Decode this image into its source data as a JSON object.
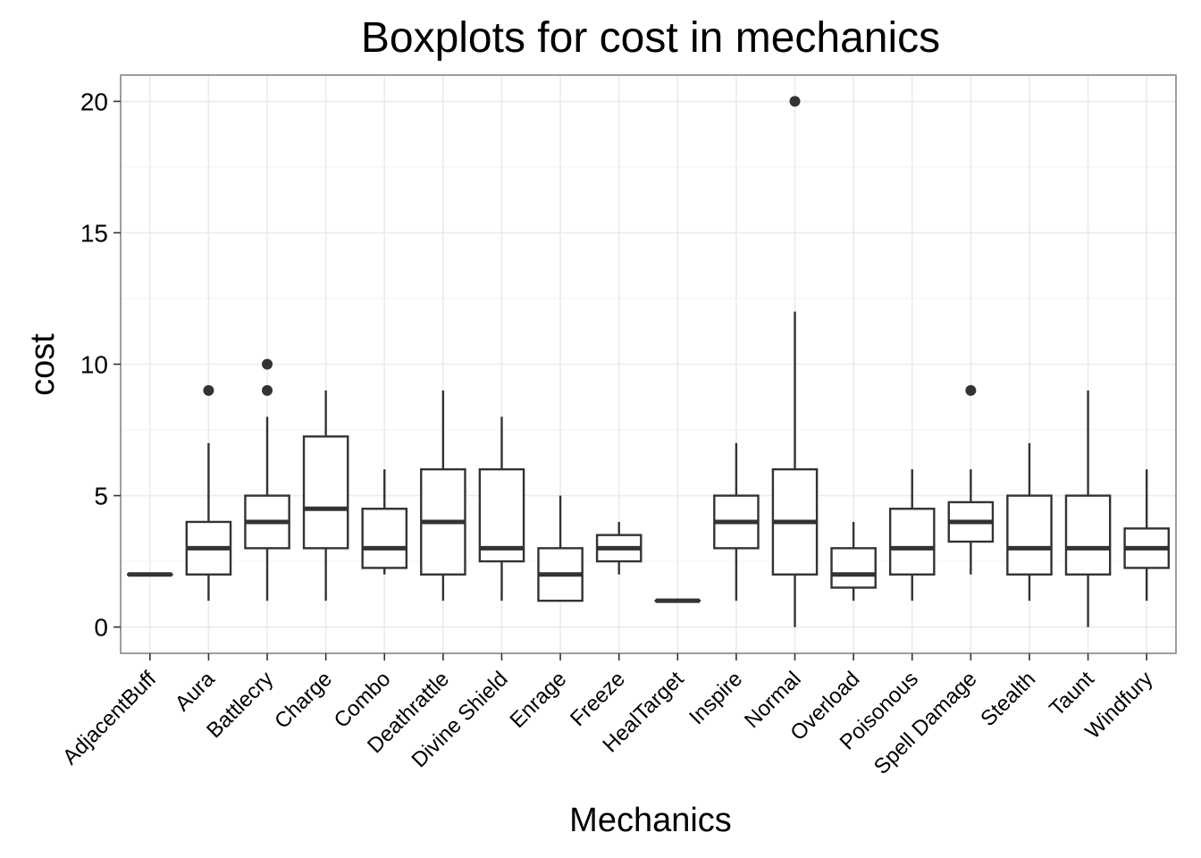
{
  "chart_data": {
    "type": "boxplot",
    "title": "Boxplots for cost in mechanics",
    "xlabel": "Mechanics",
    "ylabel": "cost",
    "ylim": [
      -1,
      21
    ],
    "yticks": [
      0,
      5,
      10,
      15,
      20
    ],
    "grid": true,
    "categories": [
      "AdjacentBuff",
      "Aura",
      "Battlecry",
      "Charge",
      "Combo",
      "Deathrattle",
      "Divine Shield",
      "Enrage",
      "Freeze",
      "HealTarget",
      "Inspire",
      "Normal",
      "Overload",
      "Poisonous",
      "Spell Damage",
      "Stealth",
      "Taunt",
      "Windfury"
    ],
    "boxes": [
      {
        "min": 2,
        "q1": 2,
        "median": 2,
        "q3": 2,
        "max": 2,
        "outliers": []
      },
      {
        "min": 1,
        "q1": 2,
        "median": 3,
        "q3": 4,
        "max": 7,
        "outliers": [
          9
        ]
      },
      {
        "min": 1,
        "q1": 3,
        "median": 4,
        "q3": 5,
        "max": 8,
        "outliers": [
          9,
          10
        ]
      },
      {
        "min": 1,
        "q1": 3,
        "median": 4.5,
        "q3": 7.25,
        "max": 9,
        "outliers": []
      },
      {
        "min": 2,
        "q1": 2.25,
        "median": 3,
        "q3": 4.5,
        "max": 6,
        "outliers": []
      },
      {
        "min": 1,
        "q1": 2,
        "median": 4,
        "q3": 6,
        "max": 9,
        "outliers": []
      },
      {
        "min": 1,
        "q1": 2.5,
        "median": 3,
        "q3": 6,
        "max": 8,
        "outliers": []
      },
      {
        "min": 1,
        "q1": 1,
        "median": 2,
        "q3": 3,
        "max": 5,
        "outliers": []
      },
      {
        "min": 2,
        "q1": 2.5,
        "median": 3,
        "q3": 3.5,
        "max": 4,
        "outliers": []
      },
      {
        "min": 1,
        "q1": 1,
        "median": 1,
        "q3": 1,
        "max": 1,
        "outliers": []
      },
      {
        "min": 1,
        "q1": 3,
        "median": 4,
        "q3": 5,
        "max": 7,
        "outliers": []
      },
      {
        "min": 0,
        "q1": 2,
        "median": 4,
        "q3": 6,
        "max": 12,
        "outliers": [
          20
        ]
      },
      {
        "min": 1,
        "q1": 1.5,
        "median": 2,
        "q3": 3,
        "max": 4,
        "outliers": []
      },
      {
        "min": 1,
        "q1": 2,
        "median": 3,
        "q3": 4.5,
        "max": 6,
        "outliers": []
      },
      {
        "min": 2,
        "q1": 3.25,
        "median": 4,
        "q3": 4.75,
        "max": 6,
        "outliers": [
          9
        ]
      },
      {
        "min": 1,
        "q1": 2,
        "median": 3,
        "q3": 5,
        "max": 7,
        "outliers": []
      },
      {
        "min": 0,
        "q1": 2,
        "median": 3,
        "q3": 5,
        "max": 9,
        "outliers": []
      },
      {
        "min": 1,
        "q1": 2.25,
        "median": 3,
        "q3": 3.75,
        "max": 6,
        "outliers": []
      }
    ],
    "colors": {
      "box_line": "#333333",
      "outlier": "#333333",
      "grid": "#ebebeb",
      "panel_border": "#7f7f7f"
    }
  }
}
